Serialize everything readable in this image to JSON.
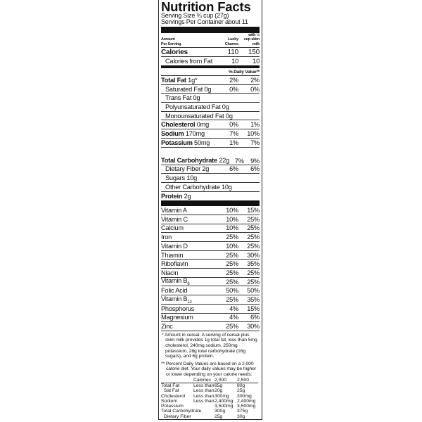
{
  "title": "Nutrition Facts",
  "serving_size": "Serving Size ¾ cup (27g)",
  "servings_per_container": "Servings Per Container about 11",
  "header": {
    "amount": "Amount",
    "per_serving": "Per Serving",
    "col1a": "Lucky",
    "col1b": "Charms",
    "col2a": "with ½",
    "col2b": "cup skim",
    "col2c": "milk"
  },
  "calories": {
    "label": "Calories",
    "v1": "110",
    "v2": "150"
  },
  "calories_from_fat": {
    "label": "Calories from Fat",
    "v1": "10",
    "v2": "10"
  },
  "daily_value_header": "% Daily Value**",
  "nutrients": [
    {
      "name": "Total Fat",
      "amount": "1g*",
      "v1": "2%",
      "v2": "2%",
      "bold": true
    },
    {
      "name": "Saturated Fat",
      "amount": "0g",
      "v1": "0%",
      "v2": "0%",
      "bold": false
    },
    {
      "name": "Trans Fat",
      "amount": "0g",
      "v1": "",
      "v2": "",
      "bold": false
    },
    {
      "name": "Polyunsaturated Fat",
      "amount": "0g",
      "v1": "",
      "v2": "",
      "bold": false
    },
    {
      "name": "Monounsaturated Fat",
      "amount": "0g",
      "v1": "",
      "v2": "",
      "bold": false
    },
    {
      "name": "Cholesterol",
      "amount": "0mg",
      "v1": "0%",
      "v2": "1%",
      "bold": true
    },
    {
      "name": "Sodium",
      "amount": "170mg",
      "v1": "7%",
      "v2": "10%",
      "bold": true
    },
    {
      "name": "Potassium",
      "amount": "50mg",
      "v1": "1%",
      "v2": "7%",
      "bold": true
    },
    {
      "name": "Total Carbohydrate",
      "amount": "22g",
      "v1": "7%",
      "v2": "9%",
      "bold": true
    },
    {
      "name": "Dietary Fiber",
      "amount": "2g",
      "v1": "6%",
      "v2": "6%",
      "bold": false
    },
    {
      "name": "Sugars",
      "amount": "10g",
      "v1": "",
      "v2": "",
      "bold": false
    },
    {
      "name": "Other Carbohydrate",
      "amount": "10g",
      "v1": "",
      "v2": "",
      "bold": false
    },
    {
      "name": "Protein",
      "amount": "2g",
      "v1": "",
      "v2": "",
      "bold": true
    }
  ],
  "vitamins": [
    {
      "name": "Vitamin A",
      "v1": "10%",
      "v2": "15%"
    },
    {
      "name": "Vitamin C",
      "v1": "10%",
      "v2": "25%"
    },
    {
      "name": "Calcium",
      "v1": "10%",
      "v2": "25%"
    },
    {
      "name": "Iron",
      "v1": "25%",
      "v2": "25%"
    },
    {
      "name": "Vitamin D",
      "v1": "10%",
      "v2": "25%"
    },
    {
      "name": "Thiamin",
      "v1": "25%",
      "v2": "30%"
    },
    {
      "name": "Riboflavin",
      "v1": "25%",
      "v2": "35%"
    },
    {
      "name": "Niacin",
      "v1": "25%",
      "v2": "25%"
    },
    {
      "name": "Vitamin B6",
      "v1": "25%",
      "v2": "25%"
    },
    {
      "name": "Folic Acid",
      "v1": "50%",
      "v2": "50%"
    },
    {
      "name": "Vitamin B12",
      "v1": "25%",
      "v2": "35%"
    },
    {
      "name": "Phosphorus",
      "v1": "4%",
      "v2": "15%"
    },
    {
      "name": "Magnesium",
      "v1": "4%",
      "v2": "6%"
    },
    {
      "name": "Zinc",
      "v1": "25%",
      "v2": "30%"
    }
  ],
  "footnote1": "* Amount in cereal. A serving of cereal plus skim milk provides 1g total fat, less than 5mg cholesterol, 240mg sodium, 250mg potassium, 28g total carbohydrate (16g sugars), and 6g protein.",
  "footnote2": "** Percent Daily Values are based on a 2,000 calorie diet. Your daily values may be higher or lower depending on your calorie needs:",
  "dv_table": [
    [
      "",
      "Calories",
      "2,000",
      "2,500"
    ],
    [
      "Total Fat",
      "Less than",
      "65g",
      "80g"
    ],
    [
      "  Sat Fat",
      "Less than",
      "20g",
      "25g"
    ],
    [
      "Cholesterol",
      "Less than",
      "300mg",
      "300mg"
    ],
    [
      "Sodium",
      "Less than",
      "2,400mg",
      "2,400mg"
    ],
    [
      "Potassium",
      "",
      "3,500mg",
      "3,500mg"
    ],
    [
      "Total Carbohydrate",
      "",
      "300g",
      "375g"
    ],
    [
      "  Dietary Fiber",
      "",
      "25g",
      "30g"
    ]
  ]
}
